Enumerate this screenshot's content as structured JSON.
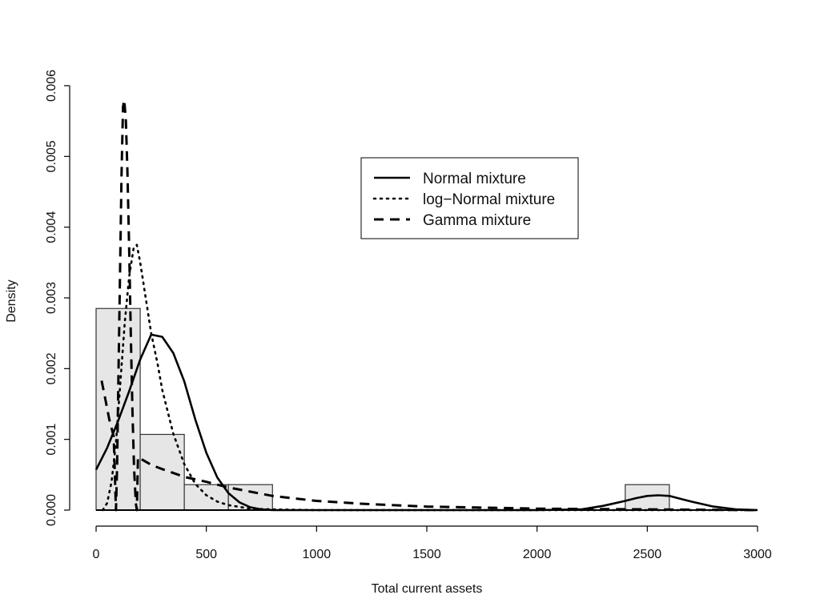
{
  "chart_data": {
    "type": "histogram",
    "title": "",
    "xlabel": "Total current assets",
    "ylabel": "Density",
    "xlim": [
      0,
      3000
    ],
    "ylim": [
      0,
      0.006
    ],
    "x_ticks": [
      0,
      500,
      1000,
      1500,
      2000,
      2500,
      3000
    ],
    "y_ticks": [
      0.0,
      0.001,
      0.002,
      0.003,
      0.004,
      0.005,
      0.006
    ],
    "y_tick_labels": [
      "0.000",
      "0.001",
      "0.002",
      "0.003",
      "0.004",
      "0.005",
      "0.006"
    ],
    "grid": false,
    "histogram": {
      "bins": [
        {
          "start": 0,
          "end": 200,
          "density": 0.00285
        },
        {
          "start": 200,
          "end": 400,
          "density": 0.00107
        },
        {
          "start": 400,
          "end": 600,
          "density": 0.00036
        },
        {
          "start": 600,
          "end": 800,
          "density": 0.00036
        },
        {
          "start": 2400,
          "end": 2600,
          "density": 0.00036
        }
      ],
      "fill": "#e6e6e6",
      "stroke": "#333333"
    },
    "series": [
      {
        "name": "Normal mixture",
        "line_style": "solid",
        "x": [
          0,
          50,
          100,
          150,
          200,
          250,
          300,
          350,
          400,
          450,
          500,
          550,
          600,
          650,
          700,
          750,
          800,
          1000,
          1500,
          2000,
          2200,
          2300,
          2400,
          2450,
          2500,
          2550,
          2600,
          2650,
          2700,
          2800,
          2900,
          3000
        ],
        "y": [
          0.00057,
          0.00088,
          0.00126,
          0.00168,
          0.00213,
          0.00248,
          0.00245,
          0.00222,
          0.00182,
          0.00128,
          0.00081,
          0.00046,
          0.00024,
          0.00011,
          4e-05,
          1e-05,
          0.0,
          0.0,
          0.0,
          0.0,
          1e-05,
          6e-05,
          0.00013,
          0.00017,
          0.0002,
          0.00021,
          0.0002,
          0.00016,
          0.00012,
          5e-05,
          1e-05,
          0.0
        ]
      },
      {
        "name": "log−Normal mixture",
        "line_style": "dotted",
        "x": [
          30,
          50,
          70,
          90,
          110,
          130,
          150,
          170,
          185,
          200,
          220,
          250,
          280,
          300,
          350,
          400,
          450,
          500,
          550,
          600,
          700,
          800,
          1000,
          1500,
          2000,
          2500,
          3000
        ],
        "y": [
          0.0,
          0.0001,
          0.0004,
          0.00095,
          0.0018,
          0.00265,
          0.0033,
          0.0037,
          0.00375,
          0.0035,
          0.0031,
          0.0025,
          0.00205,
          0.0017,
          0.00108,
          0.00065,
          0.00037,
          0.00021,
          0.00012,
          7e-05,
          2e-05,
          1e-05,
          0.0,
          0.0,
          0.0,
          0.0,
          0.0
        ]
      },
      {
        "name": "Gamma mixture",
        "line_style": "dashed",
        "x": [
          25,
          40,
          60,
          80,
          90,
          95,
          100,
          108,
          115,
          122,
          128,
          135,
          142,
          150,
          158,
          165,
          172,
          180,
          185,
          190,
          200,
          250,
          300,
          400,
          500,
          600,
          700,
          800,
          1000,
          1200,
          1500,
          2000,
          2500,
          3000
        ],
        "y": [
          0.00183,
          0.0016,
          0.00128,
          0.00104,
          0.0,
          0.0006,
          0.0016,
          0.0032,
          0.0047,
          0.0057,
          0.0058,
          0.0055,
          0.0048,
          0.0037,
          0.0024,
          0.0014,
          0.0006,
          0.0001,
          0.0,
          0.00075,
          0.00073,
          0.00064,
          0.00058,
          0.00047,
          0.0004,
          0.00032,
          0.00026,
          0.0002,
          0.00013,
          9e-05,
          5e-05,
          2e-05,
          1e-05,
          0.0
        ]
      }
    ],
    "legend": {
      "placement": "upper-center-right",
      "entries": [
        {
          "label": "Normal mixture",
          "line_style": "solid"
        },
        {
          "label": "log−Normal mixture",
          "line_style": "dotted"
        },
        {
          "label": "Gamma mixture",
          "line_style": "dashed"
        }
      ]
    }
  }
}
